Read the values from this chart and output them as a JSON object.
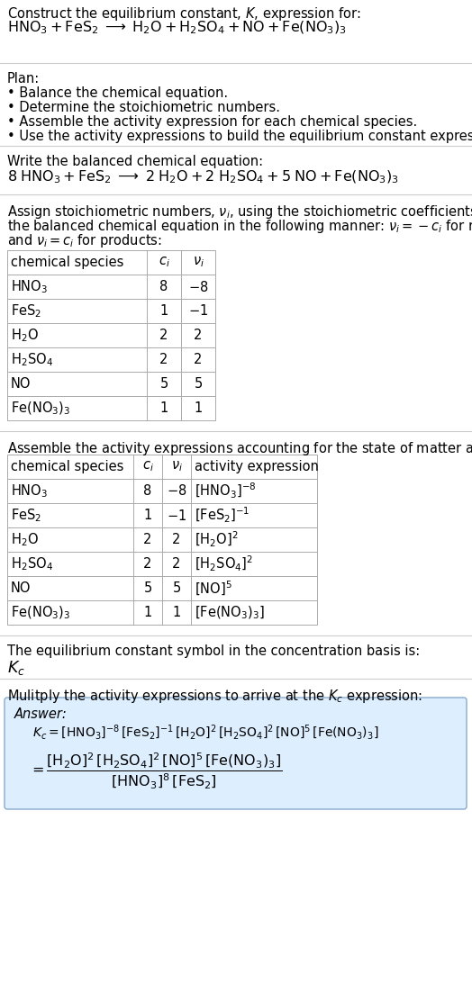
{
  "bg_color": "#ffffff",
  "text_color": "#000000",
  "table_line_color": "#aaaaaa",
  "answer_box_color": "#ddeeff",
  "answer_box_edge": "#88aacc",
  "sec1_line1": "Construct the equilibrium constant, $K$, expression for:",
  "sec1_line2_plain": "HNO",
  "sec1_line2": "$\\mathrm{HNO_3 + FeS_2 \\;\\longrightarrow\\; H_2O + H_2SO_4 + NO + Fe(NO_3)_3}$",
  "sec2_header": "Plan:",
  "sec2_bullets": [
    "\\bullet\\; Balance the chemical equation.",
    "\\bullet\\; Determine the stoichiometric numbers.",
    "\\bullet\\; Assemble the activity expression for each chemical species.",
    "\\bullet\\; Use the activity expressions to build the equilibrium constant expression."
  ],
  "sec3_header": "Write the balanced chemical equation:",
  "sec3_eq": "$\\mathrm{8\\; HNO_3 + FeS_2 \\;\\longrightarrow\\; 2\\; H_2O + 2\\; H_2SO_4 + 5\\; NO + Fe(NO_3)_3}$",
  "sec4_header_parts": [
    "Assign stoichiometric numbers, $\\nu_i$, using the stoichiometric coefficients, $c_i$, from",
    "the balanced chemical equation in the following manner: $\\nu_i = -c_i$ for reactants",
    "and $\\nu_i = c_i$ for products:"
  ],
  "table1_header": [
    "chemical species",
    "$c_i$",
    "$\\nu_i$"
  ],
  "table1_rows": [
    [
      "$\\mathrm{HNO_3}$",
      "8",
      "$-8$"
    ],
    [
      "$\\mathrm{FeS_2}$",
      "1",
      "$-1$"
    ],
    [
      "$\\mathrm{H_2O}$",
      "2",
      "2"
    ],
    [
      "$\\mathrm{H_2SO_4}$",
      "2",
      "2"
    ],
    [
      "NO",
      "5",
      "5"
    ],
    [
      "$\\mathrm{Fe(NO_3)_3}$",
      "1",
      "1"
    ]
  ],
  "sec5_header": "Assemble the activity expressions accounting for the state of matter and $\\nu_i$:",
  "table2_header": [
    "chemical species",
    "$c_i$",
    "$\\nu_i$",
    "activity expression"
  ],
  "table2_rows": [
    [
      "$\\mathrm{HNO_3}$",
      "8",
      "$-8$",
      "$[\\mathrm{HNO_3}]^{-8}$"
    ],
    [
      "$\\mathrm{FeS_2}$",
      "1",
      "$-1$",
      "$[\\mathrm{FeS_2}]^{-1}$"
    ],
    [
      "$\\mathrm{H_2O}$",
      "2",
      "2",
      "$[\\mathrm{H_2O}]^{2}$"
    ],
    [
      "$\\mathrm{H_2SO_4}$",
      "2",
      "2",
      "$[\\mathrm{H_2SO_4}]^{2}$"
    ],
    [
      "NO",
      "5",
      "5",
      "$[\\mathrm{NO}]^{5}$"
    ],
    [
      "$\\mathrm{Fe(NO_3)_3}$",
      "1",
      "1",
      "$[\\mathrm{Fe(NO_3)_3}]$"
    ]
  ],
  "sec6_header": "The equilibrium constant symbol in the concentration basis is:",
  "sec6_symbol": "$K_c$",
  "sec7_header": "Mulitply the activity expressions to arrive at the $K_c$ expression:",
  "answer_label": "Answer:",
  "answer_eq1": "$K_c = [\\mathrm{HNO_3}]^{-8}\\,[\\mathrm{FeS_2}]^{-1}\\,[\\mathrm{H_2O}]^{2}\\,[\\mathrm{H_2SO_4}]^{2}\\,[\\mathrm{NO}]^{5}\\,[\\mathrm{Fe(NO_3)_3}]$",
  "answer_eq2_lhs": "$= \\dfrac{[\\mathrm{H_2O}]^{2}\\,[\\mathrm{H_2SO_4}]^{2}\\,[\\mathrm{NO}]^{5}\\,[\\mathrm{Fe(NO_3)_3}]}{[\\mathrm{HNO_3}]^{8}\\,[\\mathrm{FeS_2}]}$",
  "divider_color": "#cccccc",
  "fs": 10.5,
  "fs_eq": 11.5,
  "fs_small": 9.5
}
